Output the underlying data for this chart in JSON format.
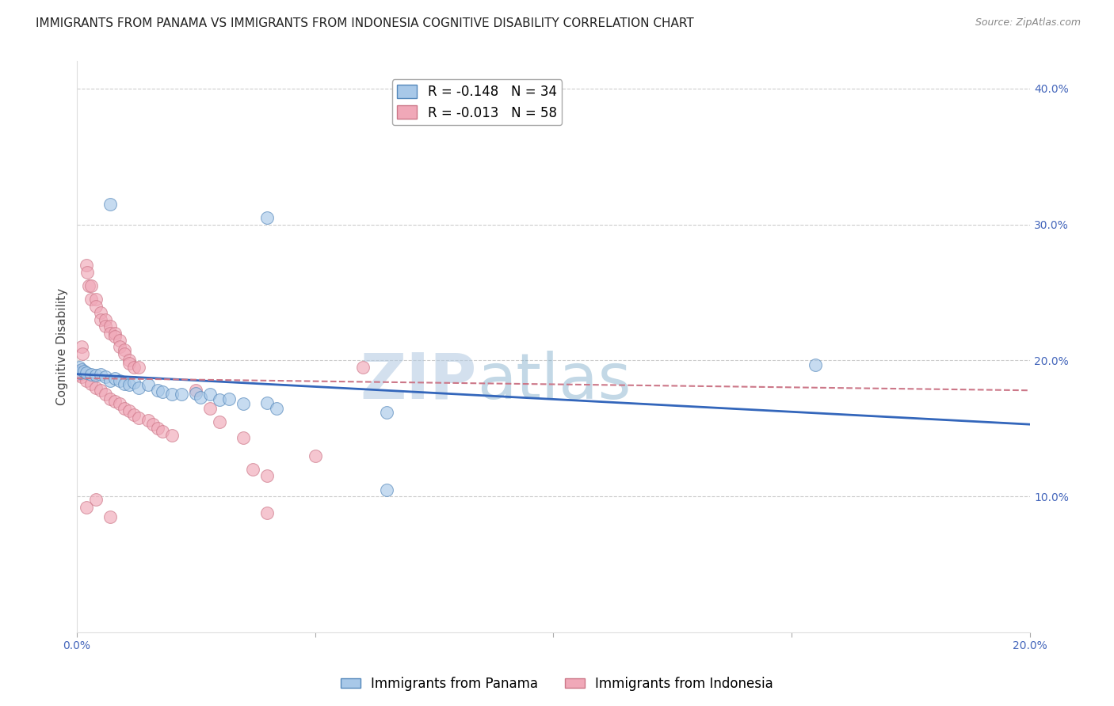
{
  "title": "IMMIGRANTS FROM PANAMA VS IMMIGRANTS FROM INDONESIA COGNITIVE DISABILITY CORRELATION CHART",
  "source": "Source: ZipAtlas.com",
  "ylabel": "Cognitive Disability",
  "xlim": [
    0.0,
    0.2
  ],
  "ylim": [
    0.0,
    0.42
  ],
  "panama_color": "#a8c8e8",
  "panama_edge": "#5588bb",
  "indonesia_color": "#f0a8b8",
  "indonesia_edge": "#cc7788",
  "trend_panama_color": "#3366bb",
  "trend_indonesia_color": "#cc7788",
  "grid_color": "#cccccc",
  "background_color": "#ffffff",
  "watermark_zip": "ZIP",
  "watermark_atlas": "atlas",
  "panama_trend": [
    0.19,
    0.153
  ],
  "indonesia_trend": [
    0.187,
    0.178
  ],
  "panama_points": [
    [
      0.0005,
      0.195
    ],
    [
      0.0008,
      0.191
    ],
    [
      0.001,
      0.193
    ],
    [
      0.0015,
      0.192
    ],
    [
      0.002,
      0.191
    ],
    [
      0.003,
      0.19
    ],
    [
      0.004,
      0.189
    ],
    [
      0.005,
      0.19
    ],
    [
      0.006,
      0.188
    ],
    [
      0.007,
      0.185
    ],
    [
      0.008,
      0.187
    ],
    [
      0.009,
      0.185
    ],
    [
      0.01,
      0.183
    ],
    [
      0.011,
      0.182
    ],
    [
      0.012,
      0.184
    ],
    [
      0.013,
      0.18
    ],
    [
      0.015,
      0.182
    ],
    [
      0.017,
      0.178
    ],
    [
      0.018,
      0.177
    ],
    [
      0.02,
      0.175
    ],
    [
      0.022,
      0.175
    ],
    [
      0.025,
      0.176
    ],
    [
      0.026,
      0.173
    ],
    [
      0.028,
      0.175
    ],
    [
      0.03,
      0.171
    ],
    [
      0.032,
      0.172
    ],
    [
      0.035,
      0.168
    ],
    [
      0.04,
      0.169
    ],
    [
      0.042,
      0.165
    ],
    [
      0.065,
      0.162
    ],
    [
      0.007,
      0.315
    ],
    [
      0.04,
      0.305
    ],
    [
      0.065,
      0.105
    ],
    [
      0.155,
      0.197
    ]
  ],
  "indonesia_points": [
    [
      0.0005,
      0.192
    ],
    [
      0.0008,
      0.19
    ],
    [
      0.001,
      0.21
    ],
    [
      0.0012,
      0.205
    ],
    [
      0.002,
      0.27
    ],
    [
      0.0022,
      0.265
    ],
    [
      0.0025,
      0.255
    ],
    [
      0.003,
      0.255
    ],
    [
      0.003,
      0.245
    ],
    [
      0.004,
      0.245
    ],
    [
      0.004,
      0.24
    ],
    [
      0.005,
      0.235
    ],
    [
      0.005,
      0.23
    ],
    [
      0.006,
      0.23
    ],
    [
      0.006,
      0.225
    ],
    [
      0.007,
      0.225
    ],
    [
      0.007,
      0.22
    ],
    [
      0.008,
      0.22
    ],
    [
      0.008,
      0.218
    ],
    [
      0.009,
      0.215
    ],
    [
      0.009,
      0.21
    ],
    [
      0.01,
      0.208
    ],
    [
      0.01,
      0.205
    ],
    [
      0.011,
      0.2
    ],
    [
      0.011,
      0.198
    ],
    [
      0.012,
      0.195
    ],
    [
      0.013,
      0.195
    ],
    [
      0.0005,
      0.19
    ],
    [
      0.001,
      0.188
    ],
    [
      0.002,
      0.185
    ],
    [
      0.003,
      0.183
    ],
    [
      0.004,
      0.18
    ],
    [
      0.005,
      0.178
    ],
    [
      0.006,
      0.175
    ],
    [
      0.007,
      0.172
    ],
    [
      0.008,
      0.17
    ],
    [
      0.009,
      0.168
    ],
    [
      0.01,
      0.165
    ],
    [
      0.011,
      0.163
    ],
    [
      0.012,
      0.16
    ],
    [
      0.013,
      0.158
    ],
    [
      0.015,
      0.156
    ],
    [
      0.016,
      0.153
    ],
    [
      0.017,
      0.15
    ],
    [
      0.018,
      0.148
    ],
    [
      0.02,
      0.145
    ],
    [
      0.025,
      0.178
    ],
    [
      0.028,
      0.165
    ],
    [
      0.03,
      0.155
    ],
    [
      0.035,
      0.143
    ],
    [
      0.037,
      0.12
    ],
    [
      0.04,
      0.115
    ],
    [
      0.05,
      0.13
    ],
    [
      0.06,
      0.195
    ],
    [
      0.002,
      0.092
    ],
    [
      0.004,
      0.098
    ],
    [
      0.007,
      0.085
    ],
    [
      0.04,
      0.088
    ]
  ],
  "panama_R": -0.148,
  "panama_N": 34,
  "indonesia_R": -0.013,
  "indonesia_N": 58,
  "title_fontsize": 11,
  "axis_label_fontsize": 11,
  "tick_fontsize": 10,
  "legend_fontsize": 12,
  "marker_size": 130
}
